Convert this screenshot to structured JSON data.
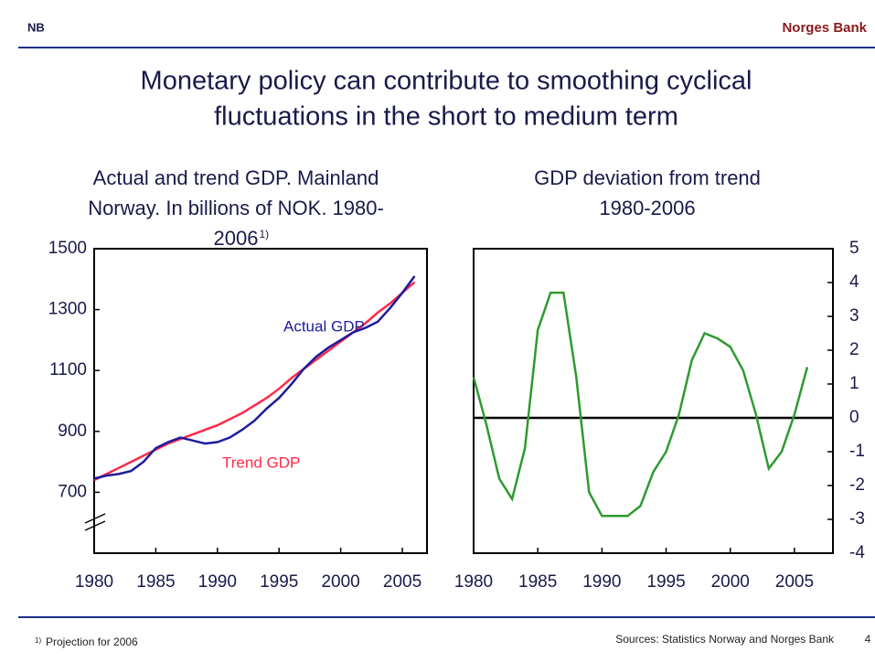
{
  "header": {
    "logo": "NB",
    "brand": "Norges Bank"
  },
  "title_lines": [
    "Monetary policy can contribute to smoothing cyclical",
    "fluctuations in the short to medium term"
  ],
  "chart_data": [
    {
      "type": "line",
      "title_lines": [
        "Actual and trend GDP. Mainland",
        "Norway. In billions of NOK. 1980-",
        "2006"
      ],
      "title_note": "1)",
      "x": [
        1980,
        1981,
        1982,
        1983,
        1984,
        1985,
        1986,
        1987,
        1988,
        1989,
        1990,
        1991,
        1992,
        1993,
        1994,
        1995,
        1996,
        1997,
        1998,
        1999,
        2000,
        2001,
        2002,
        2003,
        2004,
        2005,
        2006
      ],
      "xlim": [
        1980,
        2007
      ],
      "xticks": [
        1980,
        1985,
        1990,
        1995,
        2000,
        2005
      ],
      "ylim": [
        500,
        1500
      ],
      "yticks": [
        700,
        900,
        1100,
        1300,
        1500
      ],
      "axis_side": "left",
      "series": [
        {
          "name": "Trend GDP",
          "color": "#ff2a4a",
          "values": [
            740,
            760,
            780,
            800,
            820,
            840,
            860,
            875,
            890,
            905,
            920,
            940,
            960,
            985,
            1010,
            1040,
            1075,
            1105,
            1135,
            1165,
            1195,
            1225,
            1255,
            1290,
            1320,
            1355,
            1390
          ]
        },
        {
          "name": "Actual GDP",
          "color": "#1c1c9c",
          "values": [
            745,
            755,
            760,
            770,
            800,
            845,
            865,
            880,
            870,
            860,
            865,
            880,
            905,
            935,
            975,
            1010,
            1055,
            1105,
            1145,
            1175,
            1200,
            1225,
            1240,
            1260,
            1305,
            1355,
            1410
          ]
        }
      ]
    },
    {
      "type": "line",
      "title_lines": [
        "GDP deviation from trend",
        "1980-2006"
      ],
      "x": [
        1980,
        1981,
        1982,
        1983,
        1984,
        1985,
        1986,
        1987,
        1988,
        1989,
        1990,
        1991,
        1992,
        1993,
        1994,
        1995,
        1996,
        1997,
        1998,
        1999,
        2000,
        2001,
        2002,
        2003,
        2004,
        2005,
        2006
      ],
      "xlim": [
        1980,
        2008
      ],
      "xticks": [
        1980,
        1985,
        1990,
        1995,
        2000,
        2005
      ],
      "ylim": [
        -4,
        5
      ],
      "yticks": [
        -4,
        -3,
        -2,
        -1,
        0,
        1,
        2,
        3,
        4,
        5
      ],
      "axis_side": "right",
      "zero_line": true,
      "series": [
        {
          "color": "#2f9a2f",
          "values": [
            1.2,
            -0.2,
            -1.8,
            -2.4,
            -0.9,
            2.6,
            3.7,
            3.7,
            1.2,
            -2.2,
            -2.9,
            -2.9,
            -2.9,
            -2.6,
            -1.6,
            -1.0,
            0.1,
            1.7,
            2.5,
            2.35,
            2.1,
            1.4,
            0.1,
            -1.5,
            -1.0,
            0.1,
            1.5
          ]
        }
      ]
    }
  ],
  "footer": {
    "note_mark": "1)",
    "note": "Projection for 2006",
    "sources": "Sources: Statistics Norway and Norges Bank",
    "page": "4"
  }
}
